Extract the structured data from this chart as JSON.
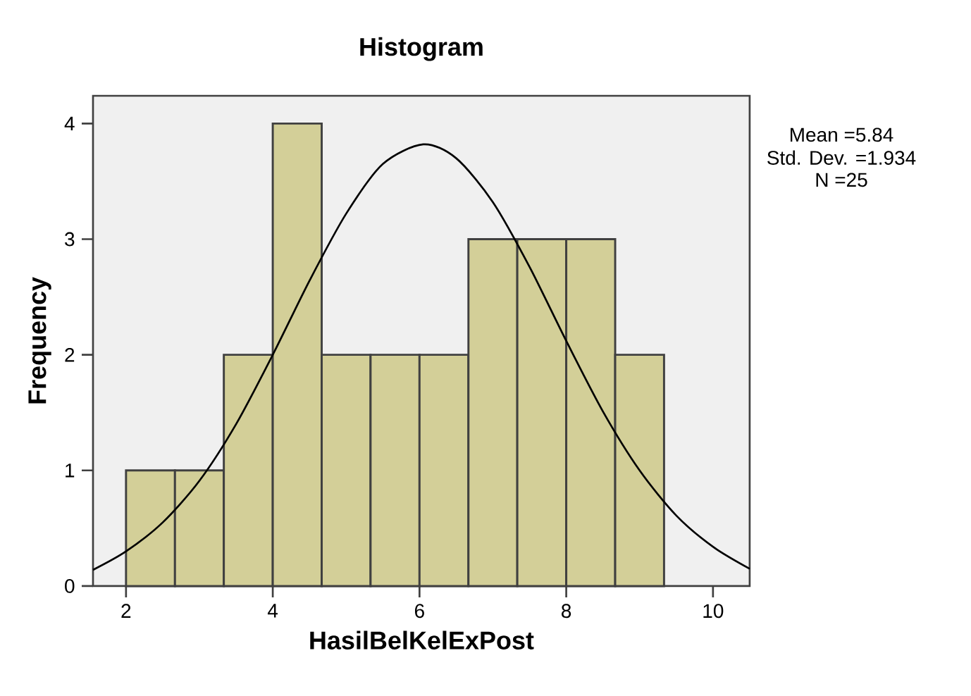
{
  "chart_data": {
    "type": "histogram",
    "title": "Histogram",
    "xlabel": "HasilBelKelExPost",
    "ylabel": "Frequency",
    "bins": [
      2,
      2.667,
      3.333,
      4,
      4.667,
      5.333,
      6,
      6.667,
      7.333,
      8,
      8.667,
      9.333
    ],
    "values": [
      1,
      1,
      2,
      4,
      2,
      2,
      2,
      3,
      3,
      3,
      2
    ],
    "color": "#d3cf98",
    "series": [
      {
        "type": "line",
        "color": "#000000",
        "x": [
          1.55,
          2,
          2.5,
          3,
          3.5,
          4,
          4.5,
          5,
          5.5,
          6.05,
          6.5,
          7,
          7.5,
          8,
          8.5,
          9,
          9.5,
          10,
          10.5
        ],
        "values": [
          0.14,
          0.3,
          0.55,
          0.91,
          1.4,
          2.0,
          2.64,
          3.22,
          3.65,
          3.82,
          3.7,
          3.32,
          2.76,
          2.12,
          1.51,
          1.0,
          0.61,
          0.34,
          0.15
        ]
      }
    ],
    "xlim": [
      1.55,
      10.5
    ],
    "ylim": [
      0,
      4.24
    ],
    "xticks": [
      2,
      4,
      6,
      8,
      10
    ],
    "yticks": [
      0,
      1,
      2,
      3,
      4
    ],
    "annotations": [
      "Mean =5.84",
      "Std. Dev. =1.934",
      "N =25"
    ]
  }
}
